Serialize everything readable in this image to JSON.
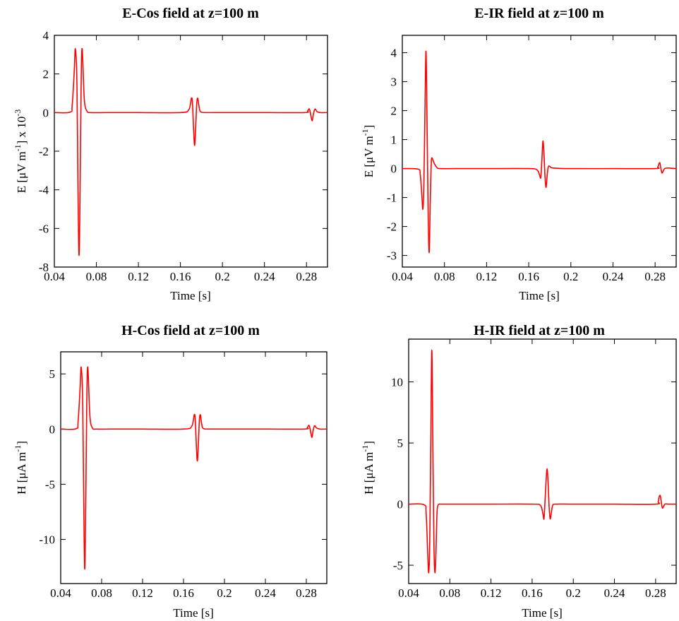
{
  "chart_data": [
    {
      "type": "line",
      "title": "E-Cos field at z=100 m",
      "xlabel": "Time [s]",
      "ylabel": {
        "main": "E [μV m",
        "sup": "-1",
        "mid": "] x 10",
        "sup2": "-3"
      },
      "xlim": [
        0.04,
        0.3
      ],
      "ylim": [
        -8,
        4
      ],
      "xticks": [
        0.04,
        0.08,
        0.12,
        0.16,
        0.2,
        0.24,
        0.28
      ],
      "xtick_labels": [
        "0.04",
        "0.08",
        "0.12",
        "0.16",
        "0.2",
        "0.24",
        "0.28"
      ],
      "yticks": [
        -8,
        -6,
        -4,
        -2,
        0,
        2,
        4
      ],
      "ytick_labels": [
        "-8",
        "-6",
        "-4",
        "-2",
        "0",
        "2",
        "4"
      ],
      "grid": false,
      "color": "#ff0000",
      "series": [
        {
          "x": [
            0.04,
            0.055,
            0.057,
            0.059,
            0.06,
            0.0615,
            0.0625,
            0.0635,
            0.0645,
            0.0655,
            0.0665,
            0.0685,
            0.071,
            0.075,
            0.09,
            0.12,
            0.16,
            0.168,
            0.1705,
            0.1715,
            0.1725,
            0.1735,
            0.1745,
            0.1755,
            0.1765,
            0.1775,
            0.1785,
            0.18,
            0.183,
            0.2,
            0.24,
            0.278,
            0.281,
            0.2825,
            0.2835,
            0.2845,
            0.2855,
            0.2865,
            0.2875,
            0.2885,
            0.29,
            0.293,
            0.3
          ],
          "y": [
            0,
            0.02,
            0.4,
            2.2,
            3.3,
            1.5,
            -4.0,
            -7.4,
            -4.0,
            1.5,
            3.3,
            0.7,
            0.08,
            0,
            0,
            0,
            0,
            0.15,
            0.75,
            0.45,
            -0.8,
            -1.7,
            -0.8,
            0.45,
            0.75,
            0.4,
            0.1,
            0.02,
            0,
            0,
            0,
            0,
            0.08,
            0.2,
            0.05,
            -0.25,
            -0.42,
            -0.1,
            0.12,
            0.18,
            0.05,
            0.0,
            0
          ]
        }
      ]
    },
    {
      "type": "line",
      "title": "E-IR field at z=100 m",
      "xlabel": "Time [s]",
      "ylabel": {
        "main": "E [μV m",
        "sup": "-1",
        "mid": "]",
        "sup2": ""
      },
      "xlim": [
        0.04,
        0.3
      ],
      "ylim": [
        -3.4,
        4.6
      ],
      "xticks": [
        0.04,
        0.08,
        0.12,
        0.16,
        0.2,
        0.24,
        0.28
      ],
      "xtick_labels": [
        "0.04",
        "0.08",
        "0.12",
        "0.16",
        "0.2",
        "0.24",
        "0.28"
      ],
      "yticks": [
        -3,
        -2,
        -1,
        0,
        1,
        2,
        3,
        4
      ],
      "ytick_labels": [
        "-3",
        "-2",
        "-1",
        "0",
        "1",
        "2",
        "3",
        "4"
      ],
      "grid": false,
      "color": "#ff0000",
      "series": [
        {
          "x": [
            0.04,
            0.055,
            0.057,
            0.0585,
            0.0595,
            0.0605,
            0.0615,
            0.0625,
            0.0635,
            0.0645,
            0.0655,
            0.0665,
            0.0675,
            0.0685,
            0.07,
            0.073,
            0.076,
            0.09,
            0.12,
            0.16,
            0.168,
            0.1705,
            0.1715,
            0.1725,
            0.1735,
            0.1745,
            0.1755,
            0.1765,
            0.1775,
            0.1785,
            0.18,
            0.183,
            0.2,
            0.24,
            0.28,
            0.2825,
            0.2835,
            0.2845,
            0.2855,
            0.2865,
            0.2875,
            0.289,
            0.292,
            0.3
          ],
          "y": [
            0,
            -0.02,
            -0.2,
            -0.9,
            -1.4,
            -0.5,
            2.0,
            4.05,
            1.5,
            -1.5,
            -2.9,
            -1.2,
            0.2,
            0.35,
            0.2,
            0.03,
            0,
            0,
            0,
            0,
            -0.05,
            -0.25,
            -0.3,
            0.3,
            0.95,
            0.5,
            -0.3,
            -0.65,
            -0.25,
            0.05,
            0.08,
            0.02,
            0,
            0,
            0,
            0.05,
            0.15,
            0.2,
            0.0,
            -0.15,
            -0.1,
            0.0,
            0.02,
            0
          ]
        }
      ]
    },
    {
      "type": "line",
      "title": "H-Cos field at z=100 m",
      "xlabel": "Time [s]",
      "ylabel": {
        "main": "H [μA m",
        "sup": "-1",
        "mid": "]",
        "sup2": ""
      },
      "xlim": [
        0.04,
        0.3
      ],
      "ylim": [
        -14,
        7
      ],
      "xticks": [
        0.04,
        0.08,
        0.12,
        0.16,
        0.2,
        0.24,
        0.28
      ],
      "xtick_labels": [
        "0.04",
        "0.08",
        "0.12",
        "0.16",
        "0.2",
        "0.24",
        "0.28"
      ],
      "yticks": [
        -10,
        -5,
        0,
        5
      ],
      "ytick_labels": [
        "-10",
        "-5",
        "0",
        "5"
      ],
      "grid": false,
      "color": "#ff0000",
      "series": [
        {
          "x": [
            0.04,
            0.055,
            0.057,
            0.059,
            0.06,
            0.0615,
            0.0625,
            0.0635,
            0.0645,
            0.0655,
            0.0665,
            0.0685,
            0.071,
            0.075,
            0.09,
            0.12,
            0.16,
            0.168,
            0.1705,
            0.1715,
            0.1725,
            0.1735,
            0.1745,
            0.1755,
            0.1765,
            0.1775,
            0.1785,
            0.18,
            0.183,
            0.2,
            0.24,
            0.278,
            0.281,
            0.2825,
            0.2835,
            0.2845,
            0.2855,
            0.2865,
            0.2875,
            0.2885,
            0.29,
            0.293,
            0.3
          ],
          "y": [
            0,
            0.03,
            0.7,
            3.8,
            5.6,
            2.5,
            -6.5,
            -12.7,
            -6.5,
            2.5,
            5.6,
            1.2,
            0.1,
            0,
            0,
            0,
            0,
            0.25,
            1.3,
            0.8,
            -1.4,
            -2.9,
            -1.4,
            0.8,
            1.3,
            0.6,
            0.15,
            0.03,
            0,
            0,
            0,
            0,
            0.15,
            0.35,
            0.1,
            -0.4,
            -0.75,
            -0.2,
            0.2,
            0.3,
            0.1,
            0.0,
            0
          ]
        }
      ]
    },
    {
      "type": "line",
      "title": "H-IR field at z=100 m",
      "xlabel": "Time [s]",
      "ylabel": {
        "main": "H [μA m",
        "sup": "-1",
        "mid": "]",
        "sup2": ""
      },
      "xlim": [
        0.04,
        0.3
      ],
      "ylim": [
        -6.5,
        13.5
      ],
      "xticks": [
        0.04,
        0.08,
        0.12,
        0.16,
        0.2,
        0.24,
        0.28
      ],
      "xtick_labels": [
        "0.04",
        "0.08",
        "0.12",
        "0.16",
        "0.2",
        "0.24",
        "0.28"
      ],
      "yticks": [
        -5,
        0,
        5,
        10
      ],
      "ytick_labels": [
        "-5",
        "0",
        "5",
        "10"
      ],
      "grid": false,
      "color": "#ff0000",
      "series": [
        {
          "x": [
            0.04,
            0.055,
            0.057,
            0.0585,
            0.0595,
            0.0605,
            0.0615,
            0.0625,
            0.0635,
            0.0645,
            0.0655,
            0.0665,
            0.0675,
            0.0685,
            0.07,
            0.073,
            0.09,
            0.12,
            0.16,
            0.168,
            0.1705,
            0.1715,
            0.1725,
            0.1735,
            0.1745,
            0.1755,
            0.1765,
            0.1775,
            0.1785,
            0.18,
            0.183,
            0.2,
            0.24,
            0.28,
            0.2825,
            0.2835,
            0.2845,
            0.2855,
            0.2865,
            0.2875,
            0.289,
            0.292,
            0.3
          ],
          "y": [
            0,
            -0.05,
            -0.8,
            -4.0,
            -5.6,
            -3.0,
            5.0,
            12.6,
            5.0,
            -3.0,
            -5.6,
            -4.0,
            -0.8,
            -0.1,
            0,
            0,
            0,
            0,
            0,
            -0.1,
            -0.8,
            -1.2,
            0.2,
            1.8,
            2.9,
            1.8,
            -0.2,
            -1.2,
            -0.8,
            -0.1,
            0,
            0,
            0,
            0,
            0.2,
            0.6,
            0.7,
            0.2,
            -0.3,
            -0.25,
            0.0,
            0.0,
            0
          ]
        }
      ]
    }
  ]
}
